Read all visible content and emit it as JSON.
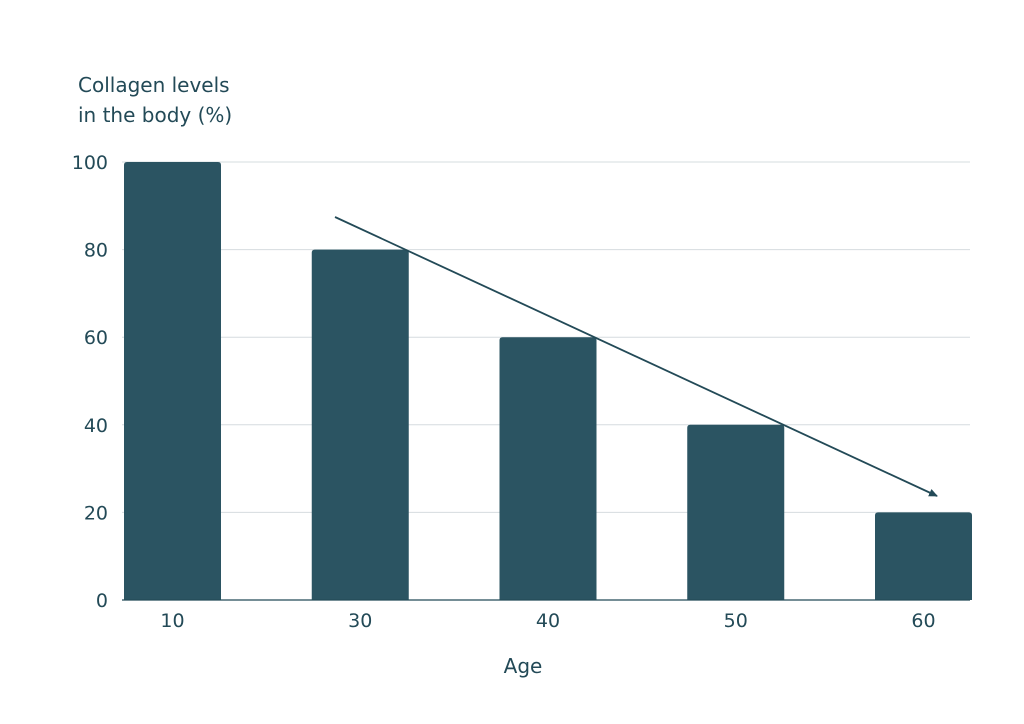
{
  "chart_data": {
    "type": "bar",
    "title": "",
    "ylabel_lines": [
      "Collagen levels",
      "in the body (%)"
    ],
    "xlabel": "Age",
    "categories": [
      "10",
      "30",
      "40",
      "50",
      "60"
    ],
    "values": [
      100,
      80,
      60,
      40,
      20
    ],
    "ylim": [
      0,
      100
    ],
    "yticks": [
      0,
      20,
      40,
      60,
      80,
      100
    ],
    "grid": true,
    "trend_arrow": true,
    "colors": {
      "bar": "#2b5462",
      "text": "#234a57",
      "grid": "#d6dcdf"
    }
  }
}
